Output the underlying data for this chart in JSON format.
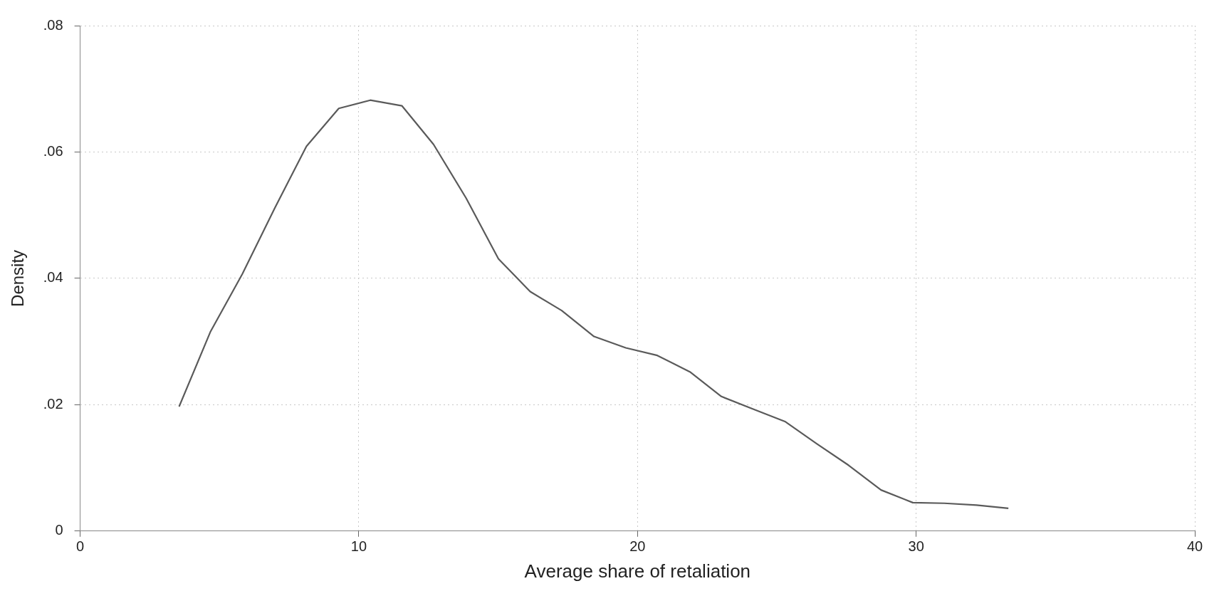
{
  "chart_data": {
    "type": "line",
    "xlabel": "Average share of retaliation",
    "ylabel": "Density",
    "x": [
      3.55,
      4.68,
      5.82,
      6.98,
      8.12,
      9.28,
      10.41,
      11.55,
      12.68,
      13.85,
      15.01,
      16.15,
      17.28,
      18.44,
      19.58,
      20.71,
      21.88,
      23.01,
      24.15,
      25.31,
      26.44,
      27.58,
      28.74,
      29.88,
      31.01,
      32.17,
      33.31
    ],
    "series": [
      {
        "color": "#5a5a5a",
        "values": [
          0.0197,
          0.0316,
          0.0407,
          0.0511,
          0.0609,
          0.0669,
          0.0682,
          0.0673,
          0.0612,
          0.0527,
          0.0431,
          0.0379,
          0.0349,
          0.0308,
          0.029,
          0.0278,
          0.0252,
          0.0213,
          0.0193,
          0.0173,
          0.0138,
          0.0104,
          0.0065,
          0.0045,
          0.0044,
          0.0041,
          0.0036
        ]
      }
    ],
    "xlim": [
      0,
      40
    ],
    "xticks": [
      0,
      10,
      20,
      30,
      40
    ],
    "ylim": [
      0,
      0.08
    ],
    "yticks": [
      0,
      {
        "value": 0.02,
        "label": ".02"
      },
      {
        "value": 0.04,
        "label": ".04"
      },
      {
        "value": 0.06,
        "label": ".06"
      },
      {
        "value": 0.08,
        "label": ".08"
      }
    ],
    "grid": true,
    "marker": "none",
    "line_style": "solid",
    "legend": false
  }
}
